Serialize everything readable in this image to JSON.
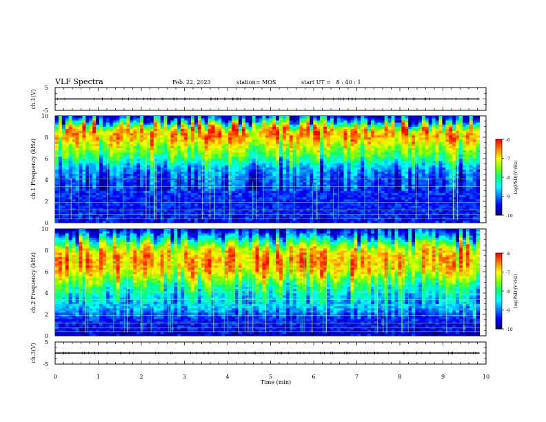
{
  "header": {
    "title": "VLF Spectra",
    "date": "Feb. 22, 2023",
    "station": "station= MOS",
    "start": "start UT =   8 : 40 : 1"
  },
  "colorbar": {
    "label": "log(PSD)(V²/Hz)",
    "ticks": [
      "-6",
      "-7",
      "-8",
      "-9",
      "-10"
    ],
    "colors": [
      "#000080",
      "#0000ff",
      "#0080ff",
      "#00ffff",
      "#00ff80",
      "#80ff00",
      "#ffff00",
      "#ff8000",
      "#ff0000",
      "#ffffff"
    ]
  },
  "chart_data": [
    {
      "type": "line",
      "panel": "ch1-waveform",
      "ylabel": "ch.1(V)",
      "ylim": [
        -5,
        5
      ],
      "yticks": [
        "5",
        "-5"
      ],
      "xlim": [
        0,
        10
      ],
      "series": [
        {
          "x": [
            0,
            9.85
          ],
          "y": [
            0,
            0
          ]
        }
      ]
    },
    {
      "type": "heatmap",
      "panel": "ch1-spectrogram",
      "ylabel": "ch.1  Frequency (kHz)",
      "ylim": [
        0,
        10
      ],
      "yticks": [
        "0",
        "2",
        "4",
        "6",
        "8",
        "10"
      ],
      "xlim": [
        0,
        10
      ],
      "data_end_min": 9.85,
      "zlim": [
        -10,
        -6
      ],
      "profile": {
        "freq_khz": [
          0,
          0.5,
          1.0,
          1.5,
          2.0,
          2.5,
          3.0,
          4.0,
          5.0,
          5.5,
          6.0,
          7.0,
          8.0,
          8.5,
          9.0,
          9.5,
          10
        ],
        "log_psd": [
          -9.8,
          -9.3,
          -9.4,
          -9.5,
          -9.3,
          -9.5,
          -9.3,
          -9.2,
          -8.9,
          -8.5,
          -7.9,
          -7.3,
          -6.6,
          -6.5,
          -7.1,
          -8.5,
          -9.8
        ]
      }
    },
    {
      "type": "heatmap",
      "panel": "ch2-spectrogram",
      "ylabel": "ch.2  Frequency (kHz)",
      "ylim": [
        0,
        10
      ],
      "yticks": [
        "0",
        "2",
        "4",
        "6",
        "8",
        "10"
      ],
      "xlim": [
        0,
        10
      ],
      "data_end_min": 9.85,
      "zlim": [
        -10,
        -6
      ],
      "profile": {
        "freq_khz": [
          0,
          0.5,
          1.0,
          1.5,
          2.0,
          2.5,
          3.0,
          4.0,
          4.5,
          5.0,
          6.0,
          7.0,
          8.0,
          8.5,
          9.0,
          9.5,
          10
        ],
        "log_psd": [
          -9.8,
          -9.5,
          -9.4,
          -9.5,
          -9.2,
          -8.8,
          -8.6,
          -8.3,
          -8.0,
          -7.6,
          -6.8,
          -6.5,
          -6.8,
          -7.4,
          -8.3,
          -9.0,
          -9.8
        ]
      }
    },
    {
      "type": "line",
      "panel": "ch3-waveform",
      "ylabel": "ch.3(V)",
      "ylim": [
        -5,
        5
      ],
      "yticks": [
        "5",
        "-5"
      ],
      "xlim": [
        0,
        10
      ],
      "series": [
        {
          "x": [
            0,
            9.85
          ],
          "y": [
            0,
            0
          ]
        }
      ]
    }
  ],
  "xaxis": {
    "label": "Time (min)",
    "ticks": [
      "0",
      "1",
      "2",
      "3",
      "4",
      "5",
      "6",
      "7",
      "8",
      "9",
      "10"
    ]
  }
}
